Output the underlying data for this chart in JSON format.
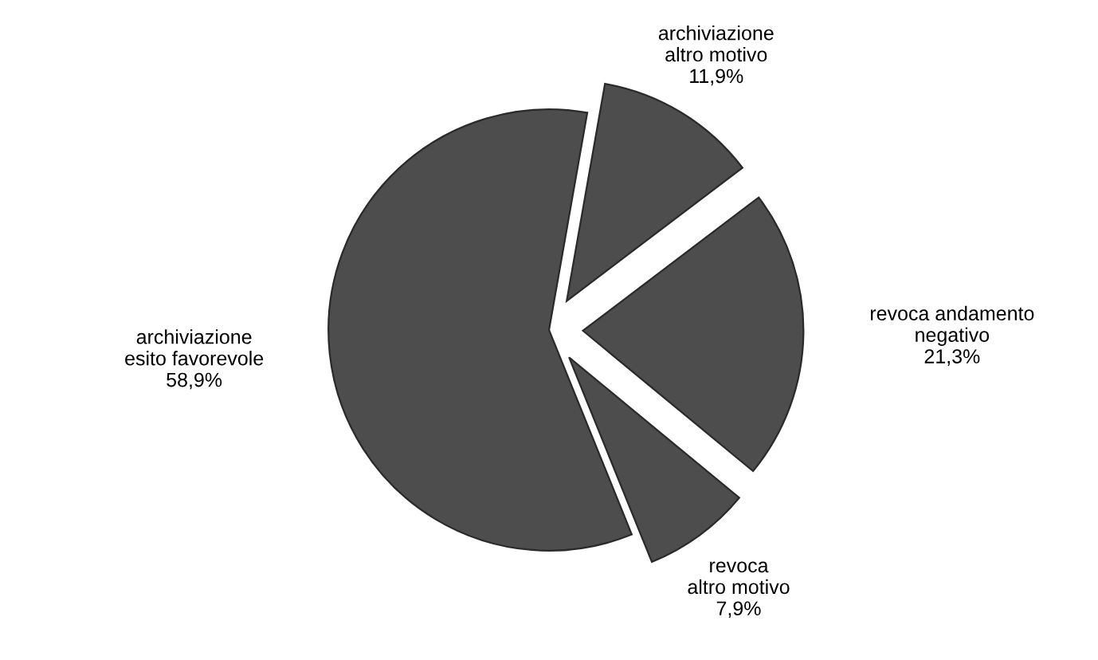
{
  "chart_data": {
    "type": "pie",
    "categories": [
      "archiviazione\naltro motivo",
      "revoca andamento\nnegativo",
      "revoca\naltro motivo",
      "archiviazione\nesito favorevole"
    ],
    "values": [
      11.9,
      21.3,
      7.9,
      58.9
    ],
    "value_labels": [
      "11,9%",
      "21,3%",
      "7,9%",
      "58,9%"
    ],
    "colors": [
      "#4d4d4d",
      "#4d4d4d",
      "#4d4d4d",
      "#4d4d4d"
    ]
  }
}
